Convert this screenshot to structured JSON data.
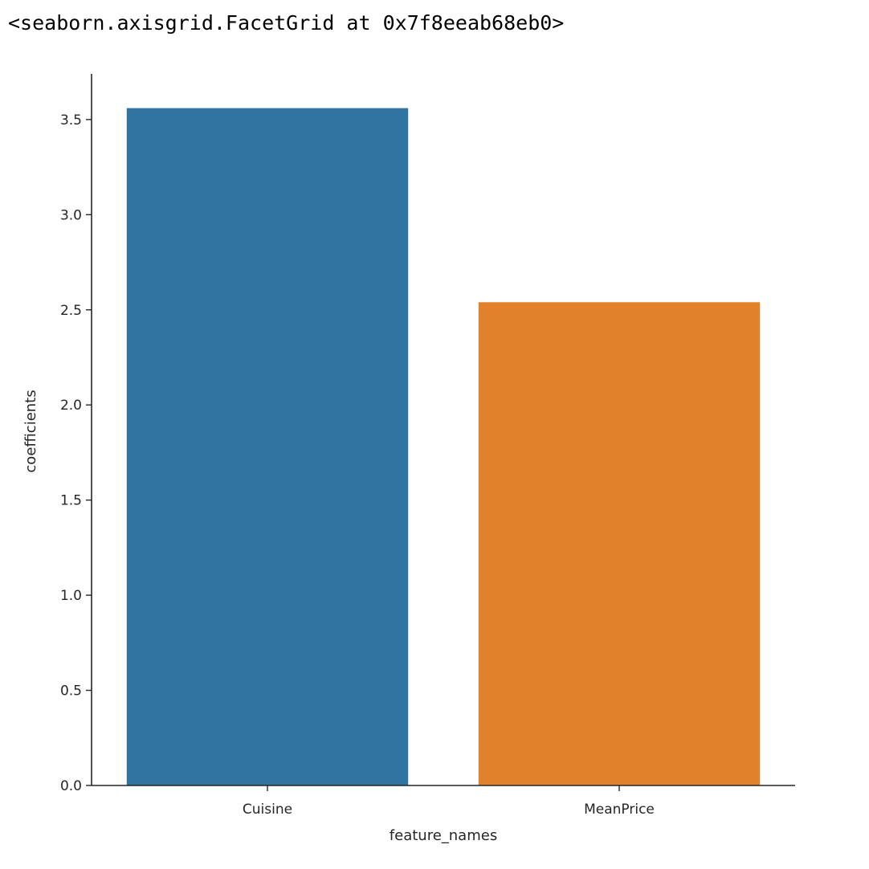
{
  "output": {
    "repr_text": "<seaborn.axisgrid.FacetGrid at 0x7f8eeab68eb0>"
  },
  "chart_data": {
    "type": "bar",
    "categories": [
      "Cuisine",
      "MeanPrice"
    ],
    "values": [
      3.56,
      2.54
    ],
    "colors": [
      "#3274a1",
      "#e1812c"
    ],
    "title": "",
    "xlabel": "feature_names",
    "ylabel": "coefficients",
    "ylim": [
      0,
      3.74
    ],
    "yticks": [
      0.0,
      0.5,
      1.0,
      1.5,
      2.0,
      2.5,
      3.0,
      3.5
    ],
    "ytick_labels": [
      "0.0",
      "0.5",
      "1.0",
      "1.5",
      "2.0",
      "2.5",
      "3.0",
      "3.5"
    ],
    "grid": false,
    "legend": "none"
  }
}
